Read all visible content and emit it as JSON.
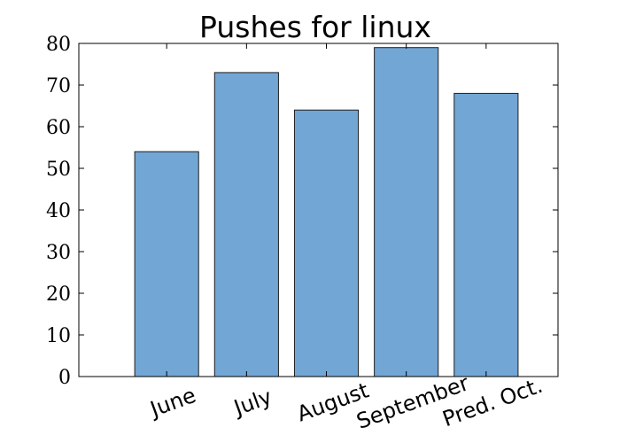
{
  "chart_data": {
    "type": "bar",
    "title": "Pushes for linux",
    "xlabel": "",
    "ylabel": "",
    "categories": [
      "June",
      "July",
      "August",
      "September",
      "Pred. Oct."
    ],
    "values": [
      54,
      73,
      64,
      79,
      68
    ],
    "ylim": [
      0,
      80
    ],
    "yticks": [
      "0",
      "10",
      "20",
      "30",
      "40",
      "50",
      "60",
      "70",
      "80"
    ],
    "grid": false,
    "legend": "none",
    "xtick_rotation_deg": 20,
    "colors": {
      "bar_fill": "#72a6d5",
      "bar_edge": "#1e1e1e",
      "axes": "#000000"
    }
  }
}
